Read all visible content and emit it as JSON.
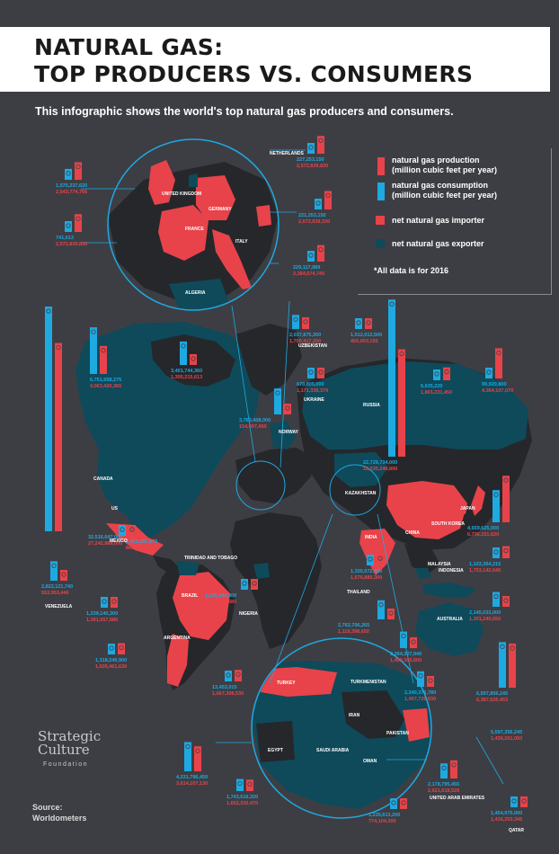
{
  "title": {
    "line1": "NATURAL GAS:",
    "line2": "TOP PRODUCERS VS. CONSUMERS"
  },
  "subtitle": "This infographic shows the world's top natural gas producers and consumers.",
  "legend": {
    "production": "natural gas production",
    "production_unit": "(million cubic feet per year)",
    "consumption": "natural gas consumption",
    "consumption_unit": "(million cubic feet per year)",
    "importer": "net natural gas importer",
    "exporter": "net natural gas exporter",
    "note": "*All data is for 2016"
  },
  "colors": {
    "production": "#1ea9e1",
    "consumption": "#e8434a",
    "importer": "#e8434a",
    "exporter": "#0e4a5a",
    "neutral": "#26272b",
    "background": "#3d3e44"
  },
  "logo": {
    "line1": "Strategic",
    "line2": "Culture",
    "line3": "Foundation"
  },
  "source": {
    "label": "Source:",
    "value": "Worldometers"
  },
  "countries": [
    {
      "name": "US",
      "production": "32,516,647,000",
      "consumption": "27,242,888,000"
    },
    {
      "name": "CANADA",
      "production": "6,751,658,275",
      "consumption": "4,063,420,365"
    },
    {
      "name": "MEXICO",
      "production": "1,451,287,673",
      "consumption": "841,553,336"
    },
    {
      "name": "TRINIDAD AND TOBAGO",
      "production": "",
      "consumption": ""
    },
    {
      "name": "VENEZUELA",
      "production": "2,822,121,740",
      "consumption": "553,953,446"
    },
    {
      "name": "BRAZIL",
      "production": "1,239,140,300",
      "consumption": "1,391,057,680"
    },
    {
      "name": "ARGENTINA",
      "production": "1,318,240,900",
      "consumption": "1,635,461,630"
    },
    {
      "name": "NIGERIA",
      "production": "1,239,140,300",
      "consumption": "1,391,057,680"
    },
    {
      "name": "ALGERIA",
      "production": "3,401,744,360",
      "consumption": "1,395,215,613"
    },
    {
      "name": "UNITED KINGDOM",
      "production": "1,575,237,620",
      "consumption": "2,543,774,766"
    },
    {
      "name": "FRANCE",
      "production": "741,613",
      "consumption": "2,572,839,830"
    },
    {
      "name": "NETHERLANDS",
      "production": "227,253,150",
      "consumption": "2,572,839,830"
    },
    {
      "name": "GERMANY",
      "production": "221,253,150",
      "consumption": "2,672,839,330"
    },
    {
      "name": "ITALY",
      "production": "229,117,989",
      "consumption": "2,384,574,745"
    },
    {
      "name": "NORWAY",
      "production": "3,763,408,000",
      "consumption": "154,097,450"
    },
    {
      "name": "UZBEKISTAN",
      "production": "2,037,875,300",
      "consumption": "1,700,417,200"
    },
    {
      "name": "UKRAINE",
      "production": "670,805,000",
      "consumption": "1,171,338,379"
    },
    {
      "name": "TURKMENISTAN",
      "production": "2,240,376,780",
      "consumption": "1,407,726,630"
    },
    {
      "name": "KAZAKHSTAN",
      "production": "1,512,013,500",
      "consumption": "450,003,150"
    },
    {
      "name": "RUSSIA",
      "production": "22,729,734,000",
      "consumption": "15,535,246,800"
    },
    {
      "name": "JAPAN",
      "production": "99,920,800",
      "consumption": "4,364,107,070"
    },
    {
      "name": "SOUTH KOREA",
      "production": "6,635,220",
      "consumption": "1,865,231,450"
    },
    {
      "name": "CHINA",
      "production": "4,659,625,000",
      "consumption": "6,736,151,620"
    },
    {
      "name": "INDIA",
      "production": "1,103,364,215",
      "consumption": "1,753,142,646"
    },
    {
      "name": "MALAYSIA",
      "production": "2,145,033,000",
      "consumption": "1,301,240,650"
    },
    {
      "name": "INDONESIA",
      "production": "2,762,706,265",
      "consumption": "1,119,398,650"
    },
    {
      "name": "THAILAND",
      "production": "1,335,072,420",
      "consumption": "1,676,889,300"
    },
    {
      "name": "AUSTRALIA",
      "production": "2,394,327,940",
      "consumption": "1,403,365,600"
    },
    {
      "name": "TURKEY",
      "production": "13,453,015",
      "consumption": "1,667,308,530"
    },
    {
      "name": "IRAN",
      "production": "6,597,856,245",
      "consumption": "6,387,626,453"
    },
    {
      "name": "PAKISTAN",
      "production": "5,597,356,245",
      "consumption": "1,436,261,050"
    },
    {
      "name": "EGYPT",
      "production": "4,231,796,450",
      "consumption": "3,614,107,130"
    },
    {
      "name": "SAUDI ARABIA",
      "production": "1,743,616,320",
      "consumption": "1,652,330,470"
    },
    {
      "name": "OMAN",
      "production": "1,235,613,200",
      "consumption": "774,104,300"
    },
    {
      "name": "UNITED ARAB EMIRATES",
      "production": "2,178,795,455",
      "consumption": "2,621,618,528"
    },
    {
      "name": "QATAR",
      "production": "1,454,975,000",
      "consumption": "1,416,253,345"
    }
  ]
}
